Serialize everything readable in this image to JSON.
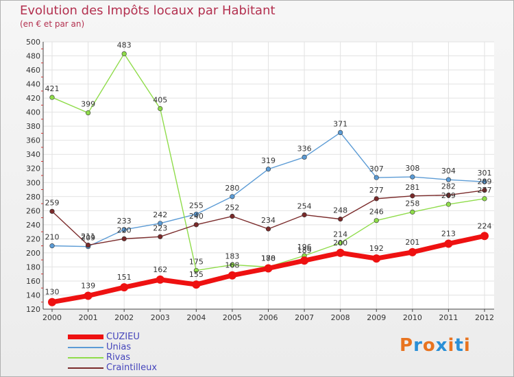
{
  "header": {
    "title": "Evolution des Impôts locaux par Habitant",
    "subtitle": "(en € et par an)"
  },
  "logo": {
    "text": "Proxiti",
    "colors": [
      "#e8731f",
      "#2a8fd6",
      "#e8731f",
      "#2a8fd6",
      "#e8731f",
      "#2a8fd6",
      "#e8731f"
    ]
  },
  "chart_data": {
    "type": "line",
    "title": "Evolution des Impôts locaux par Habitant",
    "subtitle": "(en € et par an)",
    "xlabel": "",
    "ylabel": "",
    "x": [
      "2000",
      "2001",
      "2002",
      "2003",
      "2004",
      "2005",
      "2006",
      "2007",
      "2008",
      "2009",
      "2010",
      "2011",
      "2012"
    ],
    "ylim": [
      120,
      500
    ],
    "yticks": [
      120,
      140,
      160,
      180,
      200,
      220,
      240,
      260,
      280,
      300,
      320,
      340,
      360,
      380,
      400,
      420,
      440,
      460,
      480,
      500
    ],
    "grid": true,
    "legend_position": "bottom-left",
    "series": [
      {
        "name": "Unias",
        "color": "#5b9bd5",
        "values": [
          210,
          209,
          233,
          242,
          255,
          280,
          319,
          336,
          371,
          307,
          308,
          304,
          301
        ]
      },
      {
        "name": "Rivas",
        "color": "#8fdc4a",
        "values": [
          421,
          399,
          483,
          405,
          175,
          183,
          180,
          196,
          214,
          246,
          258,
          269,
          277
        ]
      },
      {
        "name": "Craintilleux",
        "color": "#7a2a2a",
        "values": [
          259,
          211,
          220,
          223,
          240,
          252,
          234,
          254,
          248,
          277,
          281,
          282,
          289
        ]
      },
      {
        "name": "CUZIEU",
        "color": "#ee1111",
        "values": [
          130,
          139,
          151,
          162,
          155,
          168,
          178,
          189,
          200,
          192,
          201,
          213,
          224
        ]
      }
    ],
    "legend": [
      "CUZIEU",
      "Unias",
      "Rivas",
      "Craintilleux"
    ]
  }
}
